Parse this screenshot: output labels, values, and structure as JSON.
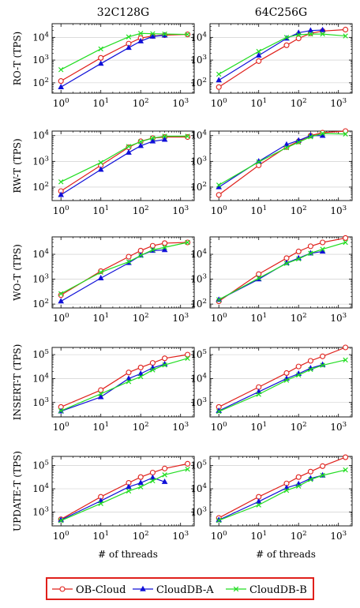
{
  "chart_data": [
    {
      "type": "line",
      "panel": "RO-T / 32C128G",
      "column_title": "32C128G",
      "ylabel": "RO-T (TPS)",
      "xscale": "log",
      "yscale": "log",
      "xlim": [
        0.6,
        2200
      ],
      "ylim": [
        35,
        40000
      ],
      "grid": true,
      "x": [
        1,
        10,
        50,
        100,
        200,
        400,
        1500
      ],
      "series": [
        {
          "name": "OB-Cloud",
          "values": [
            120,
            1250,
            5300,
            9300,
            11500,
            12500,
            13500
          ]
        },
        {
          "name": "CloudDB-A",
          "values": [
            65,
            700,
            3500,
            6800,
            11000,
            12300,
            null
          ]
        },
        {
          "name": "CloudDB-B",
          "values": [
            380,
            3100,
            10500,
            15000,
            14500,
            14000,
            13500
          ]
        }
      ]
    },
    {
      "type": "line",
      "panel": "RO-T / 64C256G",
      "column_title": "64C256G",
      "ylabel": "",
      "xscale": "log",
      "yscale": "log",
      "xlim": [
        0.6,
        2200
      ],
      "ylim": [
        35,
        40000
      ],
      "grid": true,
      "x": [
        1,
        10,
        50,
        100,
        200,
        400,
        1500
      ],
      "series": [
        {
          "name": "OB-Cloud",
          "values": [
            65,
            900,
            4500,
            9000,
            15000,
            19000,
            22000
          ]
        },
        {
          "name": "CloudDB-A",
          "values": [
            130,
            1600,
            9000,
            16000,
            20000,
            21000,
            null
          ]
        },
        {
          "name": "CloudDB-B",
          "values": [
            240,
            2400,
            10000,
            13000,
            14000,
            14000,
            11500
          ]
        }
      ]
    },
    {
      "type": "line",
      "panel": "RW-T / 32C128G",
      "ylabel": "RW-T (TPS)",
      "xscale": "log",
      "yscale": "log",
      "xlim": [
        0.6,
        2200
      ],
      "ylim": [
        30,
        15000
      ],
      "grid": true,
      "x": [
        1,
        10,
        50,
        100,
        200,
        400,
        1500
      ],
      "series": [
        {
          "name": "OB-Cloud",
          "values": [
            70,
            700,
            3500,
            6000,
            8000,
            8800,
            8800
          ]
        },
        {
          "name": "CloudDB-A",
          "values": [
            50,
            480,
            2200,
            4000,
            6000,
            7000,
            null
          ]
        },
        {
          "name": "CloudDB-B",
          "values": [
            160,
            900,
            3800,
            5800,
            8000,
            9500,
            9500
          ]
        }
      ]
    },
    {
      "type": "line",
      "panel": "RW-T / 64C256G",
      "ylabel": "",
      "xscale": "log",
      "yscale": "log",
      "xlim": [
        0.6,
        2200
      ],
      "ylim": [
        30,
        15000
      ],
      "grid": true,
      "x": [
        1,
        10,
        50,
        100,
        200,
        400,
        1500
      ],
      "series": [
        {
          "name": "OB-Cloud",
          "values": [
            50,
            700,
            3600,
            6000,
            10000,
            13000,
            15000
          ]
        },
        {
          "name": "CloudDB-A",
          "values": [
            100,
            1000,
            4500,
            6500,
            10000,
            10000,
            null
          ]
        },
        {
          "name": "CloudDB-B",
          "values": [
            120,
            950,
            3400,
            5500,
            9000,
            12000,
            11500
          ]
        }
      ]
    },
    {
      "type": "line",
      "panel": "WO-T / 32C128G",
      "ylabel": "WO-T (TPS)",
      "xscale": "log",
      "yscale": "log",
      "xlim": [
        0.6,
        2200
      ],
      "ylim": [
        70,
        50000
      ],
      "grid": true,
      "x": [
        1,
        10,
        50,
        100,
        200,
        400,
        1500
      ],
      "series": [
        {
          "name": "OB-Cloud",
          "values": [
            230,
            2100,
            8000,
            14000,
            22000,
            28000,
            30000
          ]
        },
        {
          "name": "CloudDB-A",
          "values": [
            130,
            1100,
            4500,
            9000,
            14000,
            15000,
            null
          ]
        },
        {
          "name": "CloudDB-B",
          "values": [
            260,
            1900,
            5000,
            9000,
            15000,
            19000,
            30000
          ]
        }
      ]
    },
    {
      "type": "line",
      "panel": "WO-T / 64C256G",
      "ylabel": "",
      "xscale": "log",
      "yscale": "log",
      "xlim": [
        0.6,
        2200
      ],
      "ylim": [
        70,
        50000
      ],
      "grid": true,
      "x": [
        1,
        10,
        50,
        100,
        200,
        400,
        1500
      ],
      "series": [
        {
          "name": "OB-Cloud",
          "values": [
            130,
            1600,
            7000,
            13000,
            21000,
            30000,
            45000
          ]
        },
        {
          "name": "CloudDB-A",
          "values": [
            150,
            1000,
            4500,
            7000,
            11000,
            13000,
            null
          ]
        },
        {
          "name": "CloudDB-B",
          "values": [
            150,
            1100,
            4300,
            6500,
            11000,
            16000,
            30000
          ]
        }
      ]
    },
    {
      "type": "line",
      "panel": "INSERT-T / 32C128G",
      "ylabel": "INSERT-T (TPS)",
      "xscale": "log",
      "yscale": "log",
      "xlim": [
        0.6,
        2200
      ],
      "ylim": [
        250,
        200000
      ],
      "grid": true,
      "x": [
        1,
        10,
        50,
        100,
        200,
        400,
        1500
      ],
      "series": [
        {
          "name": "OB-Cloud",
          "values": [
            650,
            3300,
            18000,
            29000,
            45000,
            70000,
            100000
          ]
        },
        {
          "name": "CloudDB-A",
          "values": [
            430,
            1700,
            10000,
            16000,
            28000,
            40000,
            null
          ]
        },
        {
          "name": "CloudDB-B",
          "values": [
            450,
            2300,
            7500,
            12000,
            23000,
            37000,
            70000
          ]
        }
      ]
    },
    {
      "type": "line",
      "panel": "INSERT-T / 64C256G",
      "ylabel": "",
      "xscale": "log",
      "yscale": "log",
      "xlim": [
        0.6,
        2200
      ],
      "ylim": [
        250,
        200000
      ],
      "grid": true,
      "x": [
        1,
        10,
        50,
        100,
        200,
        400,
        1500
      ],
      "series": [
        {
          "name": "OB-Cloud",
          "values": [
            650,
            4400,
            17000,
            32000,
            55000,
            85000,
            200000
          ]
        },
        {
          "name": "CloudDB-A",
          "values": [
            450,
            2800,
            10000,
            16000,
            27000,
            38000,
            null
          ]
        },
        {
          "name": "CloudDB-B",
          "values": [
            420,
            2200,
            8500,
            14000,
            24000,
            36000,
            60000
          ]
        }
      ]
    },
    {
      "type": "line",
      "panel": "UPDATE-T / 32C128G",
      "ylabel": "UPDATE-T (TPS)",
      "xscale": "log",
      "yscale": "log",
      "xlabel": "# of threads",
      "xlim": [
        0.6,
        2200
      ],
      "ylim": [
        250,
        250000
      ],
      "grid": true,
      "x": [
        1,
        10,
        50,
        100,
        200,
        400,
        1500
      ],
      "series": [
        {
          "name": "OB-Cloud",
          "values": [
            480,
            4500,
            18000,
            32000,
            50000,
            75000,
            120000
          ]
        },
        {
          "name": "CloudDB-A",
          "values": [
            450,
            3000,
            12000,
            18000,
            30000,
            20000,
            null
          ]
        },
        {
          "name": "CloudDB-B",
          "values": [
            420,
            2300,
            8000,
            12000,
            22000,
            40000,
            70000
          ]
        }
      ]
    },
    {
      "type": "line",
      "panel": "UPDATE-T / 64C256G",
      "ylabel": "",
      "xscale": "log",
      "yscale": "log",
      "xlabel": "# of threads",
      "xlim": [
        0.6,
        2200
      ],
      "ylim": [
        250,
        250000
      ],
      "grid": true,
      "x": [
        1,
        10,
        50,
        100,
        200,
        400,
        1500
      ],
      "series": [
        {
          "name": "OB-Cloud",
          "values": [
            550,
            4500,
            17000,
            32000,
            55000,
            95000,
            230000
          ]
        },
        {
          "name": "CloudDB-A",
          "values": [
            450,
            2800,
            11000,
            16000,
            28000,
            38000,
            null
          ]
        },
        {
          "name": "CloudDB-B",
          "values": [
            430,
            2000,
            8500,
            13000,
            25000,
            38000,
            65000
          ]
        }
      ]
    }
  ],
  "legend": {
    "entries": [
      {
        "name": "OB-Cloud",
        "color": "#e0201b",
        "marker": "circle"
      },
      {
        "name": "CloudDB-A",
        "color": "#1010d8",
        "marker": "triangle"
      },
      {
        "name": "CloudDB-B",
        "color": "#22dd22",
        "marker": "cross"
      }
    ]
  }
}
